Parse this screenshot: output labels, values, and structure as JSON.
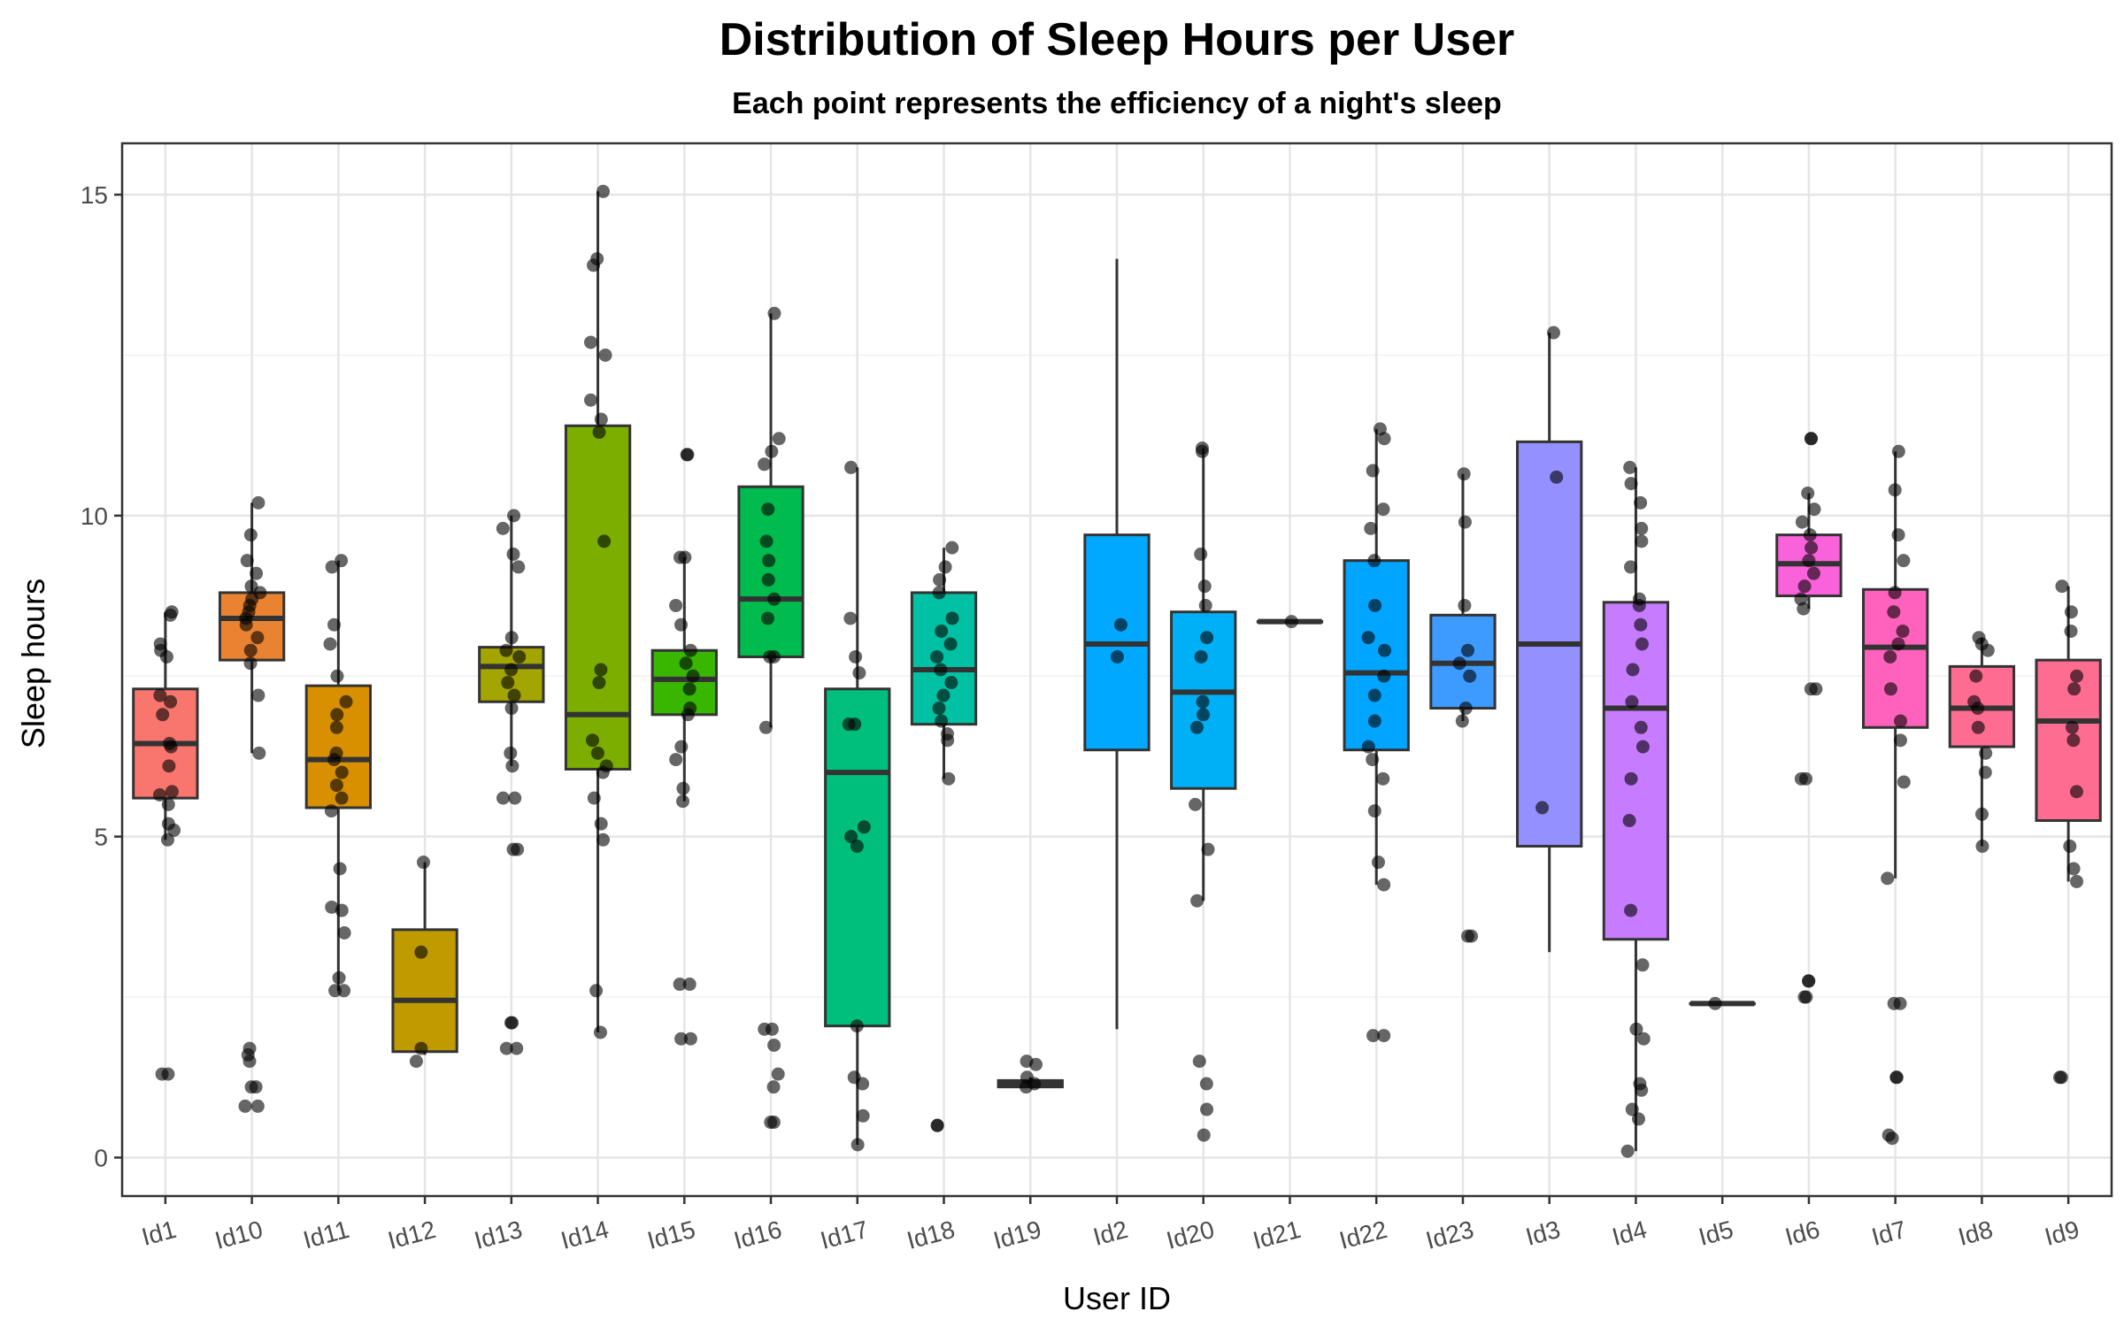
{
  "chart_data": {
    "type": "boxplot",
    "title": "Distribution of Sleep Hours per User",
    "subtitle": "Each point represents the efficiency of a night's sleep",
    "xlabel": "User ID",
    "ylabel": "Sleep hours",
    "ylim": [
      -0.6,
      15.8
    ],
    "yticks": [
      0,
      5,
      10,
      15
    ],
    "grid": true,
    "legend": "none",
    "categories": [
      "Id1",
      "Id10",
      "Id11",
      "Id12",
      "Id13",
      "Id14",
      "Id15",
      "Id16",
      "Id17",
      "Id18",
      "Id19",
      "Id2",
      "Id20",
      "Id21",
      "Id22",
      "Id23",
      "Id3",
      "Id4",
      "Id5",
      "Id6",
      "Id7",
      "Id8",
      "Id9"
    ],
    "boxes": [
      {
        "id": "Id1",
        "color": "#F8766D",
        "whisker_low": 4.95,
        "q1": 5.6,
        "median": 6.45,
        "q3": 7.3,
        "whisker_high": 8.5,
        "points": [
          1.3,
          1.3,
          4.95,
          5.1,
          5.2,
          5.5,
          5.65,
          5.7,
          6.1,
          6.4,
          6.45,
          6.9,
          7.1,
          7.2,
          7.8,
          7.9,
          8.0,
          8.45,
          8.5
        ]
      },
      {
        "id": "Id10",
        "color": "#EA8331",
        "whisker_low": 6.3,
        "q1": 7.75,
        "median": 8.4,
        "q3": 8.8,
        "whisker_high": 10.2,
        "points": [
          0.8,
          0.8,
          1.1,
          1.1,
          1.5,
          1.6,
          1.7,
          6.3,
          7.2,
          7.7,
          7.9,
          8.1,
          8.3,
          8.4,
          8.5,
          8.6,
          8.7,
          8.8,
          8.9,
          9.1,
          9.3,
          9.7,
          10.2
        ]
      },
      {
        "id": "Id11",
        "color": "#D89000",
        "whisker_low": 2.6,
        "q1": 5.45,
        "median": 6.2,
        "q3": 7.35,
        "whisker_high": 9.3,
        "points": [
          2.6,
          2.6,
          2.8,
          3.5,
          3.85,
          3.9,
          4.5,
          5.4,
          5.6,
          5.8,
          6.0,
          6.2,
          6.3,
          6.7,
          6.9,
          7.1,
          7.5,
          8.0,
          8.3,
          9.2,
          9.3
        ]
      },
      {
        "id": "Id12",
        "color": "#C09B00",
        "whisker_low": 1.6,
        "q1": 1.65,
        "median": 2.45,
        "q3": 3.55,
        "whisker_high": 4.6,
        "points": [
          1.5,
          1.7,
          3.2,
          4.6
        ]
      },
      {
        "id": "Id13",
        "color": "#A3A500",
        "whisker_low": 6.1,
        "q1": 7.1,
        "median": 7.65,
        "q3": 7.95,
        "whisker_high": 10.0,
        "points": [
          1.7,
          1.7,
          2.1,
          2.1,
          4.8,
          4.8,
          5.6,
          5.6,
          6.1,
          6.3,
          7.0,
          7.2,
          7.4,
          7.6,
          7.8,
          7.9,
          8.1,
          9.2,
          9.4,
          9.8,
          10.0
        ]
      },
      {
        "id": "Id14",
        "color": "#7CAE00",
        "whisker_low": 1.95,
        "q1": 6.05,
        "median": 6.9,
        "q3": 11.4,
        "whisker_high": 15.05,
        "points": [
          1.95,
          2.6,
          4.95,
          5.2,
          5.6,
          6.0,
          6.1,
          6.3,
          6.5,
          7.4,
          7.6,
          9.6,
          11.3,
          11.5,
          11.8,
          12.5,
          12.7,
          13.9,
          14.0,
          15.05
        ]
      },
      {
        "id": "Id15",
        "color": "#39B600",
        "whisker_low": 5.55,
        "q1": 6.9,
        "median": 7.45,
        "q3": 7.9,
        "whisker_high": 9.35,
        "points": [
          1.85,
          1.85,
          2.7,
          2.7,
          5.55,
          5.75,
          6.2,
          6.4,
          6.9,
          7.0,
          7.3,
          7.5,
          7.7,
          7.9,
          8.3,
          8.6,
          9.35,
          9.35,
          10.95,
          10.95
        ]
      },
      {
        "id": "Id16",
        "color": "#00BB4E",
        "whisker_low": 6.7,
        "q1": 7.8,
        "median": 8.7,
        "q3": 10.45,
        "whisker_high": 13.15,
        "points": [
          0.55,
          0.55,
          1.1,
          1.3,
          1.75,
          2.0,
          2.0,
          6.7,
          7.8,
          7.8,
          8.4,
          8.7,
          9.0,
          9.3,
          9.6,
          10.1,
          10.8,
          11.0,
          11.2,
          13.15
        ]
      },
      {
        "id": "Id17",
        "color": "#00BF7D",
        "whisker_low": 0.2,
        "q1": 2.05,
        "median": 6.0,
        "q3": 7.3,
        "whisker_high": 10.75,
        "points": [
          0.2,
          0.65,
          1.15,
          1.25,
          2.05,
          4.85,
          5.0,
          5.15,
          6.75,
          6.75,
          7.55,
          7.8,
          8.4,
          10.75
        ]
      },
      {
        "id": "Id18",
        "color": "#00C1A3",
        "whisker_low": 5.9,
        "q1": 6.75,
        "median": 7.6,
        "q3": 8.8,
        "whisker_high": 9.5,
        "points": [
          0.5,
          0.5,
          5.9,
          6.5,
          6.6,
          6.8,
          7.0,
          7.2,
          7.4,
          7.6,
          7.8,
          8.0,
          8.2,
          8.4,
          8.8,
          9.0,
          9.2,
          9.5
        ]
      },
      {
        "id": "Id19",
        "color": "#00BAE0",
        "whisker_low": 1.1,
        "q1": 1.1,
        "median": 1.15,
        "q3": 1.2,
        "whisker_high": 1.25,
        "points": [
          1.1,
          1.15,
          1.25,
          1.45,
          1.5
        ]
      },
      {
        "id": "Id2",
        "color": "#00A9FF",
        "whisker_low": 2.0,
        "q1": 6.35,
        "median": 8.0,
        "q3": 9.7,
        "whisker_high": 14.0,
        "points": [
          7.8,
          8.3
        ]
      },
      {
        "id": "Id20",
        "color": "#00B0F6",
        "whisker_low": 4.0,
        "q1": 5.75,
        "median": 7.25,
        "q3": 8.5,
        "whisker_high": 11.05,
        "points": [
          0.35,
          0.75,
          1.15,
          1.5,
          4.0,
          4.8,
          5.5,
          6.7,
          6.9,
          7.1,
          7.8,
          8.1,
          8.6,
          8.9,
          9.4,
          11.0,
          11.05
        ]
      },
      {
        "id": "Id21",
        "color": "#35A2FF",
        "whisker_low": 8.35,
        "q1": 8.35,
        "median": 8.35,
        "q3": 8.35,
        "whisker_high": 8.35,
        "points": [
          8.35
        ]
      },
      {
        "id": "Id22",
        "color": "#00A5FF",
        "whisker_low": 4.25,
        "q1": 6.35,
        "median": 7.55,
        "q3": 9.3,
        "whisker_high": 11.35,
        "points": [
          1.9,
          1.9,
          4.25,
          4.6,
          5.4,
          5.9,
          6.2,
          6.4,
          6.8,
          7.2,
          7.5,
          7.9,
          8.1,
          8.6,
          9.3,
          9.8,
          10.1,
          10.7,
          11.2,
          11.35
        ]
      },
      {
        "id": "Id23",
        "color": "#3D9BFF",
        "whisker_low": 6.8,
        "q1": 7.0,
        "median": 7.7,
        "q3": 8.45,
        "whisker_high": 10.65,
        "points": [
          3.45,
          3.45,
          6.8,
          7.0,
          7.5,
          7.7,
          7.9,
          8.6,
          9.9,
          10.65
        ]
      },
      {
        "id": "Id3",
        "color": "#9590FF",
        "whisker_low": 3.2,
        "q1": 4.85,
        "median": 8.0,
        "q3": 11.15,
        "whisker_high": 12.85,
        "points": [
          5.45,
          10.6,
          12.85
        ]
      },
      {
        "id": "Id4",
        "color": "#C77CFF",
        "whisker_low": 0.1,
        "q1": 3.4,
        "median": 7.0,
        "q3": 8.65,
        "whisker_high": 10.75,
        "points": [
          0.1,
          0.6,
          0.75,
          1.05,
          1.15,
          1.85,
          2.0,
          3.0,
          3.85,
          5.25,
          5.9,
          6.4,
          6.7,
          7.1,
          7.6,
          8.0,
          8.3,
          8.6,
          8.7,
          9.2,
          9.6,
          9.8,
          10.2,
          10.5,
          10.75
        ]
      },
      {
        "id": "Id5",
        "color": "#E76BF3",
        "whisker_low": 2.4,
        "q1": 2.4,
        "median": 2.4,
        "q3": 2.4,
        "whisker_high": 2.4,
        "points": [
          2.4
        ]
      },
      {
        "id": "Id6",
        "color": "#FA62DB",
        "whisker_low": 8.55,
        "q1": 8.75,
        "median": 9.25,
        "q3": 9.7,
        "whisker_high": 10.35,
        "points": [
          2.5,
          2.5,
          2.75,
          2.75,
          5.9,
          5.9,
          7.3,
          7.3,
          8.55,
          8.7,
          8.9,
          9.1,
          9.3,
          9.5,
          9.7,
          9.9,
          10.1,
          10.35,
          11.2,
          11.2
        ]
      },
      {
        "id": "Id7",
        "color": "#FF62BC",
        "whisker_low": 4.35,
        "q1": 6.7,
        "median": 7.95,
        "q3": 8.85,
        "whisker_high": 11.0,
        "points": [
          0.3,
          0.35,
          1.25,
          1.25,
          2.4,
          2.4,
          4.35,
          5.85,
          6.5,
          6.8,
          7.3,
          7.8,
          8.0,
          8.2,
          8.5,
          8.8,
          9.3,
          9.7,
          10.4,
          11.0
        ]
      },
      {
        "id": "Id8",
        "color": "#FF6C91",
        "whisker_low": 4.85,
        "q1": 6.4,
        "median": 7.0,
        "q3": 7.65,
        "whisker_high": 8.1,
        "points": [
          4.85,
          5.35,
          6.0,
          6.3,
          6.7,
          7.0,
          7.1,
          7.5,
          7.9,
          8.0,
          8.1
        ]
      },
      {
        "id": "Id9",
        "color": "#FF6C91",
        "whisker_low": 4.3,
        "q1": 5.25,
        "median": 6.8,
        "q3": 7.75,
        "whisker_high": 8.9,
        "points": [
          1.25,
          1.25,
          4.3,
          4.5,
          4.85,
          5.7,
          6.5,
          6.7,
          7.3,
          7.5,
          8.2,
          8.5,
          8.9
        ]
      }
    ]
  }
}
